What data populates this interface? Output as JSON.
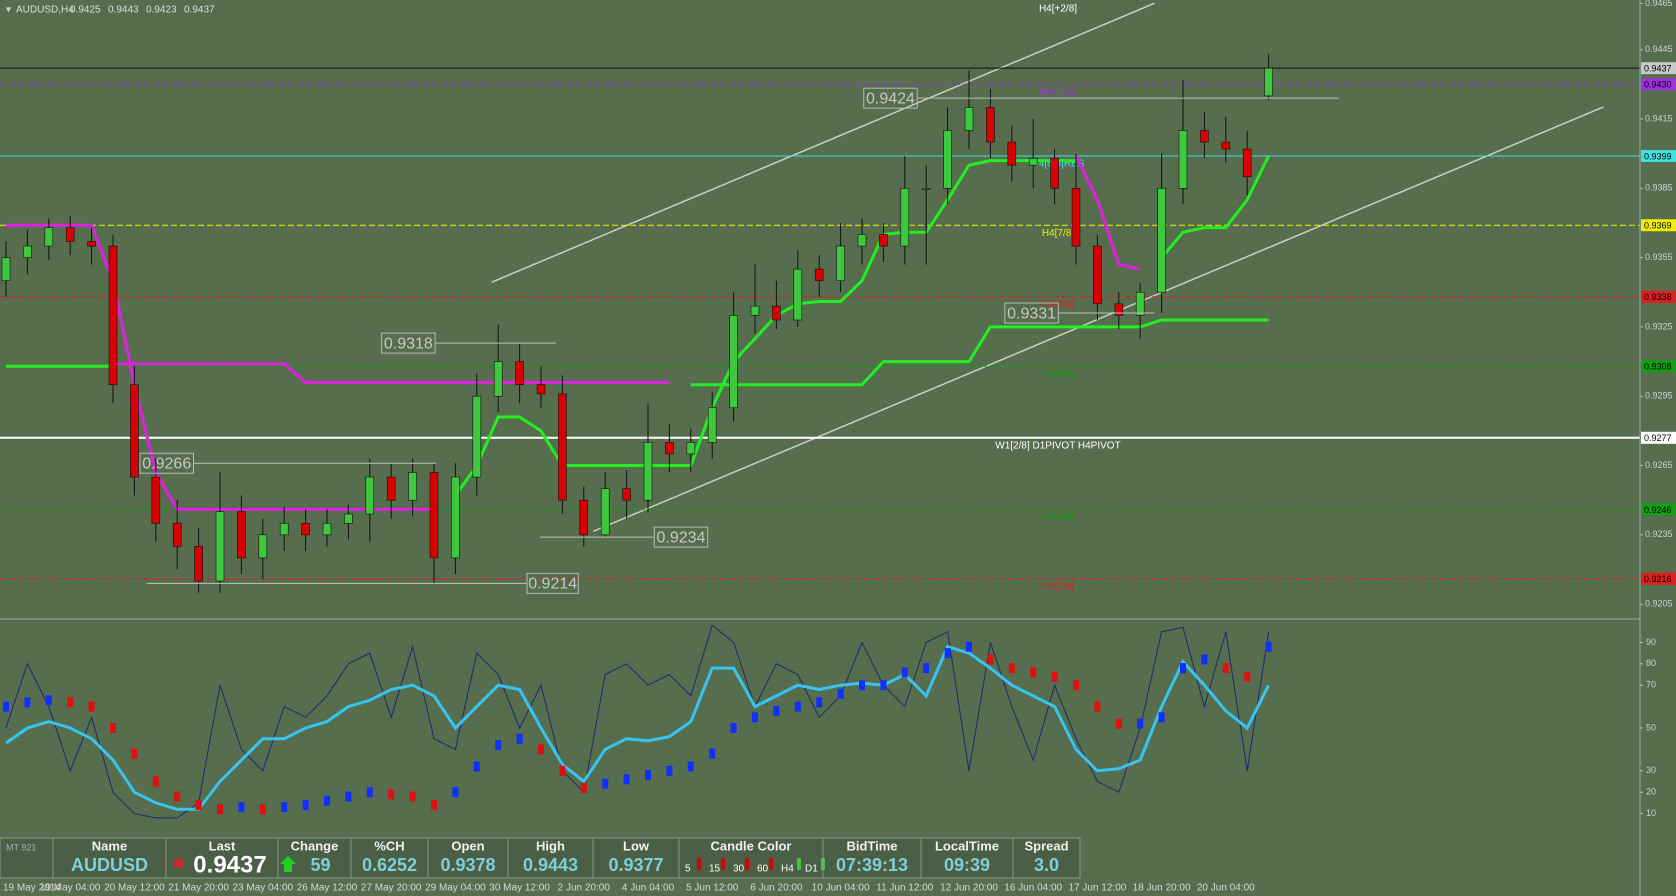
{
  "header": {
    "symbol": "AUDUSD,H4",
    "ohlc": [
      0.9425,
      0.9443,
      0.9423,
      0.9437
    ]
  },
  "chart_data": [
    {
      "type": "candlestick",
      "up_color": "#3ec83e",
      "down_color": "#d80000",
      "ylim": [
        0.9199,
        0.94665
      ],
      "yticks": [
        0.9465,
        0.9445,
        0.9415,
        0.9385,
        0.9355,
        0.9325,
        0.9295,
        0.9265,
        0.9235,
        0.9205
      ],
      "categories": [
        "19 May 2014",
        null,
        null,
        "19 May 04:00",
        null,
        null,
        "20 May 12:00",
        null,
        null,
        "21 May 20:00",
        null,
        null,
        "23 May 04:00",
        null,
        null,
        "26 May 12:00",
        null,
        null,
        "27 May 20:00",
        null,
        null,
        "29 May 04:00",
        null,
        null,
        "30 May 12:00",
        null,
        null,
        "2 Jun 20:00",
        null,
        null,
        "4 Jun 04:00",
        null,
        null,
        "5 Jun 12:00",
        null,
        null,
        "6 Jun 20:00",
        null,
        null,
        "10 Jun 04:00",
        null,
        null,
        "11 Jun 12:00",
        null,
        null,
        "12 Jun 20:00",
        null,
        null,
        "16 Jun 04:00",
        null,
        null,
        "17 Jun 12:00",
        null,
        null,
        "18 Jun 20:00",
        null,
        null,
        "20 Jun 04:00",
        null,
        null
      ],
      "open": [
        0.9345,
        0.9355,
        0.936,
        0.9368,
        0.9362,
        0.936,
        0.93,
        0.926,
        0.924,
        0.923,
        0.9215,
        0.9245,
        0.9225,
        0.9235,
        0.924,
        0.9235,
        0.924,
        0.9244,
        0.926,
        0.925,
        0.9262,
        0.9225,
        0.926,
        0.9295,
        0.931,
        0.93,
        0.9296,
        0.925,
        0.9235,
        0.9255,
        0.925,
        0.9275,
        0.927,
        0.9275,
        0.929,
        0.933,
        0.9334,
        0.9328,
        0.935,
        0.9345,
        0.936,
        0.9365,
        0.936,
        0.9385,
        0.9385,
        0.941,
        0.942,
        0.9405,
        0.9395,
        0.9398,
        0.9385,
        0.936,
        0.9335,
        0.933,
        0.934,
        0.9385,
        0.941,
        0.9405,
        0.9402,
        0.9425
      ],
      "high": [
        0.9362,
        0.9367,
        0.9372,
        0.9373,
        0.9368,
        0.9365,
        0.9308,
        0.9268,
        0.925,
        0.9238,
        0.9262,
        0.9252,
        0.9242,
        0.9247,
        0.9246,
        0.9246,
        0.9248,
        0.9268,
        0.9266,
        0.9268,
        0.9266,
        0.9266,
        0.9305,
        0.9326,
        0.9318,
        0.9308,
        0.9304,
        0.9256,
        0.9262,
        0.9263,
        0.9292,
        0.9283,
        0.9281,
        0.9297,
        0.934,
        0.9352,
        0.9345,
        0.9358,
        0.9356,
        0.937,
        0.9372,
        0.937,
        0.9399,
        0.9395,
        0.942,
        0.9436,
        0.9428,
        0.9412,
        0.9415,
        0.9402,
        0.94,
        0.9365,
        0.934,
        0.9344,
        0.94,
        0.9432,
        0.9418,
        0.9416,
        0.941,
        0.9443
      ],
      "low": [
        0.9338,
        0.9348,
        0.9354,
        0.9356,
        0.9352,
        0.9292,
        0.9252,
        0.9232,
        0.922,
        0.921,
        0.921,
        0.9218,
        0.9216,
        0.9228,
        0.9228,
        0.923,
        0.9233,
        0.9232,
        0.9242,
        0.9243,
        0.9214,
        0.9218,
        0.9252,
        0.9288,
        0.9292,
        0.929,
        0.9244,
        0.923,
        0.9234,
        0.9242,
        0.9245,
        0.9262,
        0.9262,
        0.9268,
        0.9284,
        0.9322,
        0.9324,
        0.9325,
        0.9338,
        0.934,
        0.9352,
        0.9353,
        0.9352,
        0.9352,
        0.9378,
        0.9402,
        0.9398,
        0.9388,
        0.9385,
        0.9378,
        0.9352,
        0.9328,
        0.9324,
        0.932,
        0.9331,
        0.9378,
        0.9398,
        0.9396,
        0.9382,
        0.9423
      ],
      "close": [
        0.9355,
        0.936,
        0.9368,
        0.9362,
        0.936,
        0.93,
        0.926,
        0.924,
        0.923,
        0.9215,
        0.9245,
        0.9225,
        0.9235,
        0.924,
        0.9235,
        0.924,
        0.9244,
        0.926,
        0.925,
        0.9262,
        0.9225,
        0.926,
        0.9295,
        0.931,
        0.93,
        0.9296,
        0.925,
        0.9235,
        0.9255,
        0.925,
        0.9275,
        0.927,
        0.9275,
        0.929,
        0.933,
        0.9334,
        0.9328,
        0.935,
        0.9345,
        0.936,
        0.9365,
        0.936,
        0.9385,
        0.9385,
        0.941,
        0.942,
        0.9405,
        0.9395,
        0.9398,
        0.9385,
        0.936,
        0.9335,
        0.933,
        0.934,
        0.9385,
        0.941,
        0.9405,
        0.9402,
        0.939,
        0.9437
      ],
      "lines": [
        {
          "color": "#e020e0",
          "values": [
            0.9369,
            0.9369,
            0.9369,
            0.9369,
            0.9369,
            0.9345,
            0.93,
            0.9262,
            0.9246,
            0.9246,
            0.9246,
            0.9246,
            0.9246,
            0.9246,
            0.9246,
            0.9246,
            0.9246,
            0.9246,
            0.9246,
            0.9246,
            0.9246,
            null,
            null,
            null,
            null,
            null,
            null,
            null,
            null,
            null,
            null,
            null,
            null,
            null,
            null,
            null,
            null,
            null,
            null,
            null,
            null,
            null,
            null,
            null,
            null,
            null,
            null,
            null,
            null,
            null,
            0.9399,
            0.938,
            0.9352,
            0.935,
            null,
            null,
            null,
            null,
            null,
            null
          ]
        },
        {
          "color": "#e020e0",
          "values": [
            null,
            null,
            null,
            null,
            null,
            0.9309,
            0.9309,
            0.9309,
            0.9309,
            0.9309,
            0.9309,
            0.9309,
            0.9309,
            0.9309,
            0.9301,
            0.9301,
            0.9301,
            0.9301,
            0.9301,
            0.9301,
            0.9301,
            0.9301,
            0.9301,
            0.9301,
            0.9301,
            0.9301,
            0.9301,
            0.9301,
            0.9301,
            0.9301,
            0.9301,
            0.9301,
            null,
            null,
            null,
            null,
            null,
            null,
            null,
            null,
            null,
            null,
            null,
            null,
            null,
            null,
            null,
            null,
            null,
            null,
            null,
            null,
            null,
            null,
            null,
            null,
            null,
            null,
            null,
            null
          ]
        },
        {
          "color": "#22ee22",
          "values": [
            0.9308,
            0.9308,
            0.9308,
            0.9308,
            0.9308,
            0.9308,
            null,
            null,
            null,
            null,
            null,
            null,
            null,
            null,
            null,
            null,
            null,
            null,
            null,
            null,
            null,
            0.9252,
            0.9265,
            0.9286,
            0.9286,
            0.928,
            0.9265,
            0.9265,
            0.9265,
            0.9265,
            0.9265,
            0.9265,
            0.9265,
            0.929,
            0.931,
            0.932,
            0.933,
            0.9335,
            0.9336,
            0.9336,
            0.9345,
            0.9365,
            0.9366,
            0.9366,
            0.938,
            0.9395,
            0.9397,
            0.9397,
            0.9397,
            0.9397,
            0.9397,
            null,
            null,
            null,
            0.9355,
            0.9366,
            0.9368,
            0.9368,
            0.938,
            0.9399
          ]
        },
        {
          "color": "#22ee22",
          "values": [
            null,
            null,
            null,
            null,
            null,
            null,
            null,
            null,
            null,
            null,
            null,
            null,
            null,
            null,
            null,
            null,
            null,
            null,
            null,
            null,
            null,
            null,
            null,
            null,
            null,
            null,
            null,
            null,
            null,
            null,
            null,
            null,
            0.93,
            0.93,
            0.93,
            0.93,
            0.93,
            0.93,
            0.93,
            0.93,
            0.93,
            0.931,
            0.931,
            0.931,
            0.931,
            0.931,
            0.9325,
            0.9325,
            0.9325,
            0.9325,
            0.9325,
            0.9325,
            0.9325,
            0.9325,
            0.9328,
            0.9328,
            0.9328,
            0.9328,
            0.9328,
            0.9328
          ]
        }
      ],
      "levels": [
        {
          "value": 0.9461,
          "label": "H4[+2/8]",
          "color": "#ffffff",
          "style": "none"
        },
        {
          "value": 0.9437,
          "color": "#111111",
          "style": "solid"
        },
        {
          "value": 0.943,
          "value_label": "0.9430",
          "label": "H4[+1/8]",
          "color": "#a030e0",
          "style": "dash"
        },
        {
          "value": 0.9399,
          "label": "H4[8/8]RES",
          "color": "#40e0e0",
          "style": "solid"
        },
        {
          "value": 0.9369,
          "label": "H4[7/8]",
          "color": "#f0f000",
          "style": "dash"
        },
        {
          "value": 0.9338,
          "label": "H4[6/8]",
          "color": "#e02020",
          "style": "dash"
        },
        {
          "value": 0.9308,
          "label": "H4[5/8]",
          "color": "#10a010",
          "style": "dash"
        },
        {
          "value": 0.9277,
          "label": "W1[2/8] D1PIVOT H4PIVOT",
          "color": "#ffffff",
          "style": "solid"
        },
        {
          "value": 0.9246,
          "label": "H4[3/8]",
          "color": "#10a010",
          "style": "dash"
        },
        {
          "value": 0.9216,
          "label": "H4[2/8]",
          "color": "#e02020",
          "style": "dash"
        }
      ],
      "annotations": [
        0.9424,
        0.9318,
        0.9266,
        0.9234,
        0.9214,
        0.9331
      ]
    },
    {
      "type": "oscillator",
      "ylim": [
        0,
        100
      ],
      "yticks": [
        90,
        80,
        70,
        50,
        30,
        20,
        10
      ],
      "series": [
        {
          "color": "#1c2a6e",
          "values": [
            50,
            80,
            60,
            30,
            55,
            20,
            10,
            8,
            8,
            15,
            70,
            40,
            30,
            60,
            55,
            65,
            80,
            85,
            55,
            88,
            45,
            40,
            85,
            75,
            50,
            70,
            30,
            20,
            75,
            80,
            70,
            75,
            65,
            98,
            90,
            60,
            80,
            75,
            55,
            65,
            90,
            70,
            60,
            90,
            95,
            30,
            90,
            60,
            35,
            70,
            45,
            25,
            20,
            50,
            95,
            97,
            60,
            95,
            30,
            95
          ]
        },
        {
          "color": "#38c4f0",
          "values": [
            43,
            50,
            53,
            50,
            45,
            35,
            20,
            15,
            12,
            12,
            25,
            35,
            45,
            45,
            50,
            53,
            60,
            63,
            68,
            70,
            65,
            50,
            60,
            70,
            68,
            50,
            33,
            25,
            40,
            45,
            44,
            46,
            53,
            78,
            78,
            60,
            65,
            70,
            68,
            70,
            71,
            70,
            75,
            65,
            88,
            85,
            78,
            70,
            65,
            60,
            40,
            30,
            31,
            35,
            60,
            81,
            70,
            58,
            50,
            70
          ]
        }
      ],
      "histogram": {
        "up_color": "#1030ff",
        "down_color": "#e01010",
        "values": [
          60,
          62,
          63,
          62,
          60,
          50,
          38,
          25,
          18,
          14,
          12,
          13,
          12,
          13,
          14,
          16,
          18,
          20,
          19,
          18,
          14,
          20,
          32,
          42,
          45,
          40,
          30,
          22,
          24,
          26,
          28,
          30,
          32,
          38,
          50,
          55,
          58,
          60,
          62,
          66,
          70,
          70,
          76,
          78,
          85,
          88,
          82,
          78,
          76,
          74,
          70,
          60,
          52,
          52,
          55,
          78,
          82,
          78,
          74,
          88
        ]
      }
    }
  ],
  "terminal_label": "MT 921",
  "table": {
    "headers": [
      "Name",
      "Last",
      "Change",
      "%CH",
      "Open",
      "High",
      "Low",
      "Candle Color",
      "BidTime",
      "LocalTime",
      "Spread"
    ],
    "values": [
      "AUDUSD",
      "0.9437",
      "59",
      "0.6252",
      "0.9378",
      "0.9443",
      "0.9377",
      [
        "5",
        "15",
        "30",
        "60",
        "H4",
        "D1"
      ],
      "07:39:13",
      "09:39",
      "3.0"
    ]
  }
}
